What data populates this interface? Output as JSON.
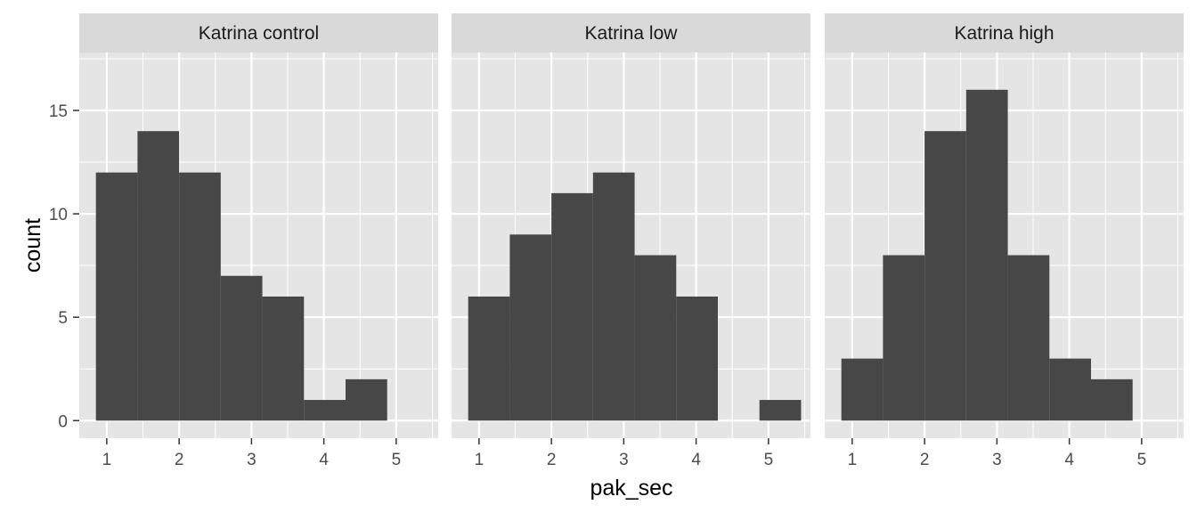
{
  "chart_data": {
    "type": "bar",
    "subtype": "faceted-histogram",
    "xlabel": "pak_sec",
    "ylabel": "count",
    "xlim": [
      0.62,
      5.58
    ],
    "ylim": [
      -0.85,
      17.8
    ],
    "x_ticks": [
      1,
      2,
      3,
      4,
      5
    ],
    "y_ticks": [
      0,
      5,
      10,
      15
    ],
    "bin_width": 0.575,
    "grid": true,
    "colors": {
      "bar": "#474747",
      "panel_background": "#e5e5e5",
      "grid": "#ffffff",
      "strip_background": "#d9d9d9"
    },
    "facets": [
      {
        "label": "Katrina control",
        "bins": [
          {
            "x0": 0.85,
            "x1": 1.425,
            "count": 12
          },
          {
            "x0": 1.425,
            "x1": 2.0,
            "count": 14
          },
          {
            "x0": 2.0,
            "x1": 2.575,
            "count": 12
          },
          {
            "x0": 2.575,
            "x1": 3.15,
            "count": 7
          },
          {
            "x0": 3.15,
            "x1": 3.725,
            "count": 6
          },
          {
            "x0": 3.725,
            "x1": 4.3,
            "count": 1
          },
          {
            "x0": 4.3,
            "x1": 4.875,
            "count": 2
          },
          {
            "x0": 4.875,
            "x1": 5.45,
            "count": 0
          }
        ]
      },
      {
        "label": "Katrina low",
        "bins": [
          {
            "x0": 0.85,
            "x1": 1.425,
            "count": 6
          },
          {
            "x0": 1.425,
            "x1": 2.0,
            "count": 9
          },
          {
            "x0": 2.0,
            "x1": 2.575,
            "count": 11
          },
          {
            "x0": 2.575,
            "x1": 3.15,
            "count": 12
          },
          {
            "x0": 3.15,
            "x1": 3.725,
            "count": 8
          },
          {
            "x0": 3.725,
            "x1": 4.3,
            "count": 6
          },
          {
            "x0": 4.3,
            "x1": 4.875,
            "count": 0
          },
          {
            "x0": 4.875,
            "x1": 5.45,
            "count": 1
          }
        ]
      },
      {
        "label": "Katrina high",
        "bins": [
          {
            "x0": 0.85,
            "x1": 1.425,
            "count": 3
          },
          {
            "x0": 1.425,
            "x1": 2.0,
            "count": 8
          },
          {
            "x0": 2.0,
            "x1": 2.575,
            "count": 14
          },
          {
            "x0": 2.575,
            "x1": 3.15,
            "count": 16
          },
          {
            "x0": 3.15,
            "x1": 3.725,
            "count": 8
          },
          {
            "x0": 3.725,
            "x1": 4.3,
            "count": 3
          },
          {
            "x0": 4.3,
            "x1": 4.875,
            "count": 2
          },
          {
            "x0": 4.875,
            "x1": 5.45,
            "count": 0
          }
        ]
      }
    ]
  }
}
